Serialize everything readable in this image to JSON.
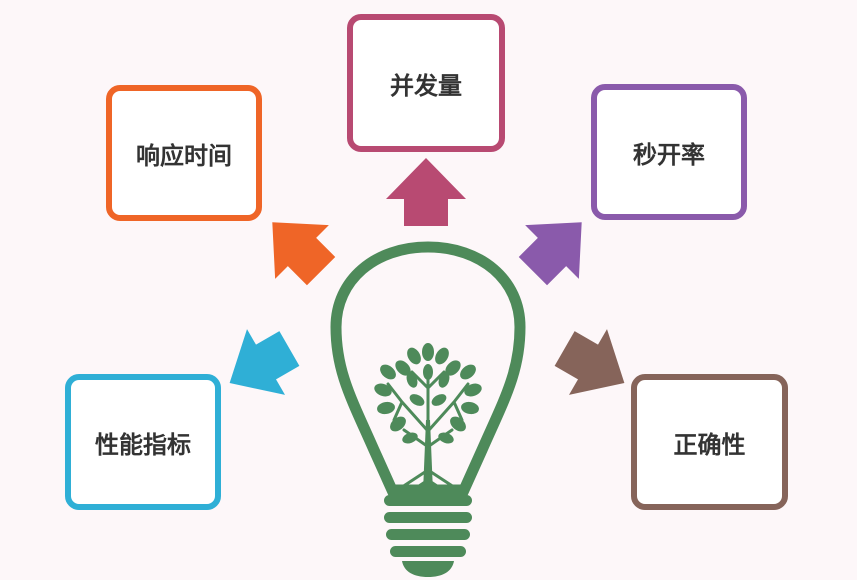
{
  "nodes": {
    "response_time": {
      "label": "响应时间",
      "color": "#ef6527"
    },
    "concurrency": {
      "label": "并发量",
      "color": "#b84a72"
    },
    "instant_open_rate": {
      "label": "秒开率",
      "color": "#8a5aab"
    },
    "performance_metrics": {
      "label": "性能指标",
      "color": "#2fafd6"
    },
    "correctness": {
      "label": "正确性",
      "color": "#86645a"
    }
  },
  "bulb": {
    "icon": "lightbulb-tree-icon",
    "color": "#4e8a5a"
  }
}
